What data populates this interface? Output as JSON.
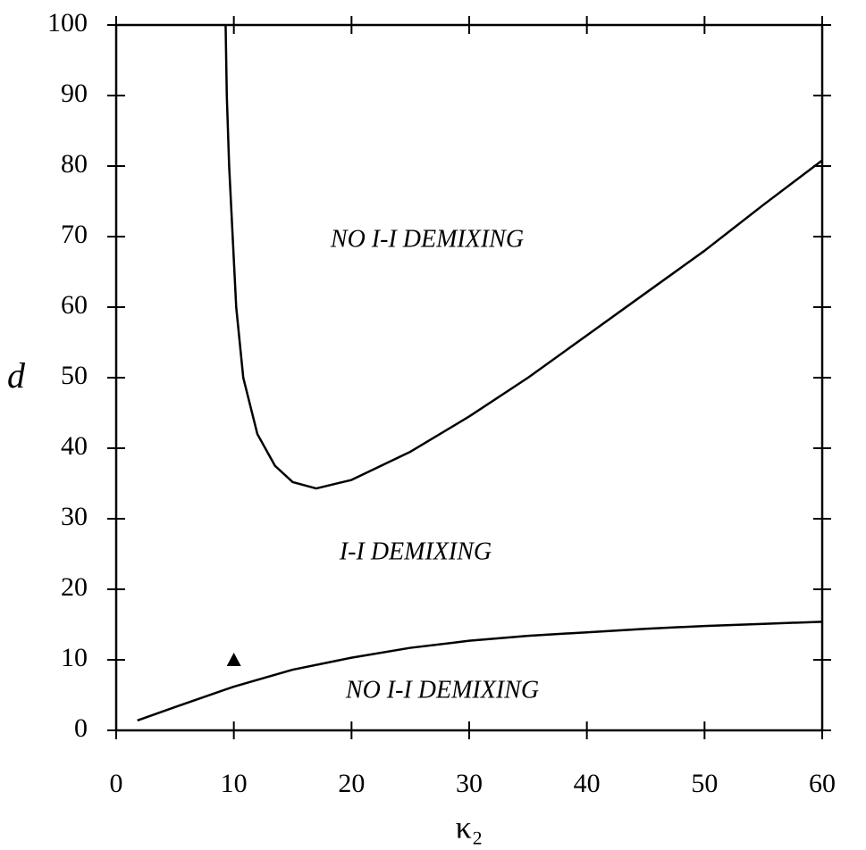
{
  "chart_data": {
    "type": "line",
    "x_label": "κ₂",
    "y_label": "d",
    "xlim": [
      0,
      60
    ],
    "ylim": [
      0,
      100
    ],
    "xticks": [
      0,
      10,
      20,
      30,
      40,
      50,
      60
    ],
    "yticks": [
      0,
      10,
      20,
      30,
      40,
      50,
      60,
      70,
      80,
      90,
      100
    ],
    "annotations": [
      "NO I-I DEMIXING",
      "I-I DEMIXING",
      "NO I-I DEMIXING"
    ],
    "series": [
      {
        "color": "#000000",
        "x": [
          9.3,
          9.4,
          9.6,
          9.9,
          10.2,
          10.8,
          12,
          13.5,
          15,
          17,
          20,
          25,
          30,
          35,
          40,
          45,
          50,
          55,
          60
        ],
        "values": [
          100,
          90,
          80,
          70,
          60,
          50,
          42,
          37.5,
          35.2,
          34.3,
          35.5,
          39.5,
          44.5,
          50,
          56,
          62,
          68,
          74.5,
          80.8
        ]
      },
      {
        "color": "#000000",
        "x": [
          1.8,
          5,
          10,
          15,
          20,
          25,
          30,
          35,
          40,
          45,
          50,
          55,
          60
        ],
        "values": [
          1.4,
          3.3,
          6.2,
          8.6,
          10.3,
          11.7,
          12.7,
          13.4,
          13.9,
          14.4,
          14.8,
          15.1,
          15.4
        ]
      },
      {
        "color": "#000000",
        "marker": "triangle",
        "x": [
          10
        ],
        "values": [
          10
        ]
      }
    ]
  }
}
